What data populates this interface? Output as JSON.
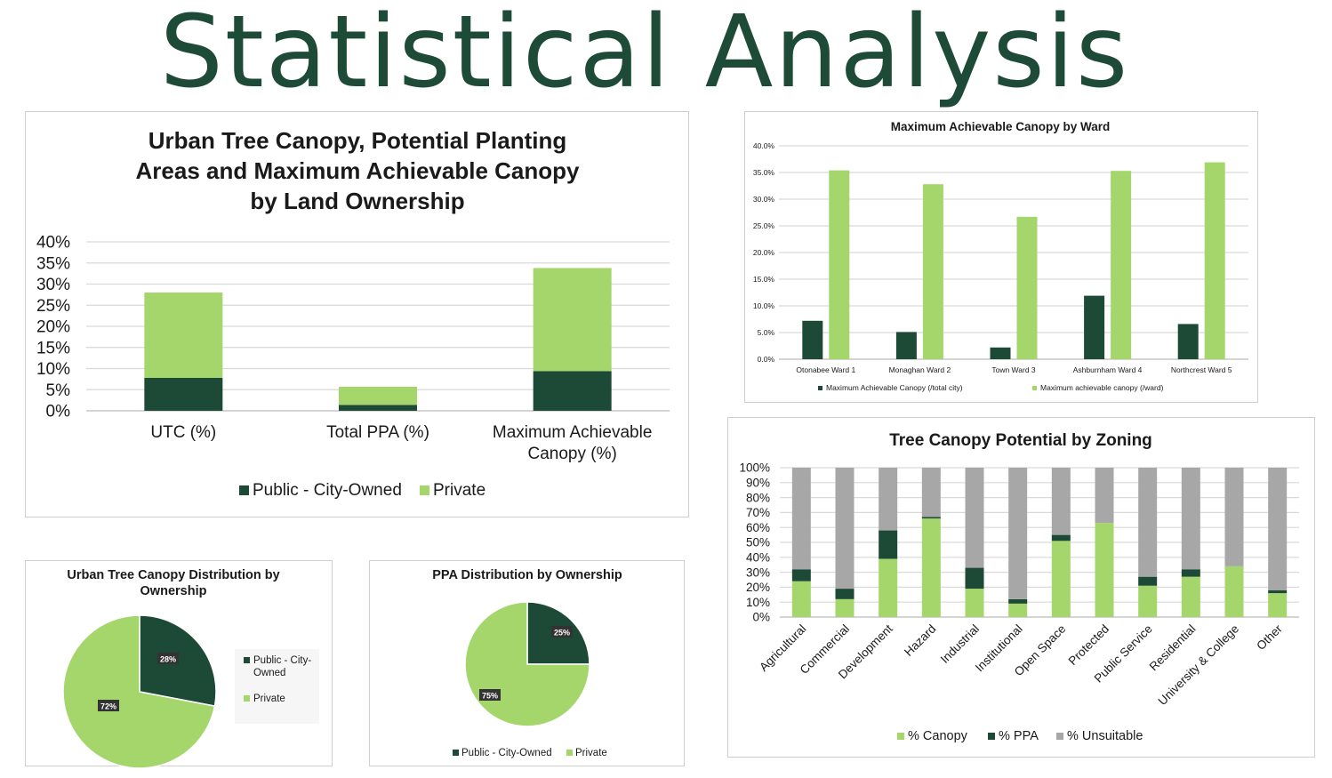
{
  "page": {
    "title": "Statistical Analysis"
  },
  "colors": {
    "dark": "#1d4a37",
    "light": "#a5d66b",
    "gray": "#a7a7a7",
    "grid": "#d9d9d9",
    "title": "#1e4a38"
  },
  "chart_data": [
    {
      "id": "ownership",
      "type": "bar",
      "stacked": true,
      "title_lines": [
        "Urban Tree Canopy, Potential Planting",
        "Areas and Maximum Achievable Canopy",
        "by Land Ownership"
      ],
      "categories": [
        [
          "UTC (%)"
        ],
        [
          "Total PPA (%)"
        ],
        [
          "Maximum Achievable",
          "Canopy (%)"
        ]
      ],
      "series": [
        {
          "name": "Public - City-Owned",
          "color": "dark",
          "values": [
            7.8,
            1.4,
            9.4
          ]
        },
        {
          "name": "Private",
          "color": "light",
          "values": [
            20.2,
            4.3,
            24.4
          ]
        }
      ],
      "ylim": [
        0,
        40
      ],
      "y_ticks": [
        "0%",
        "5%",
        "10%",
        "15%",
        "20%",
        "25%",
        "30%",
        "35%",
        "40%"
      ],
      "grid": true,
      "legend": "bottom"
    },
    {
      "id": "ward",
      "type": "bar",
      "stacked": false,
      "title_lines": [
        "Maximum Achievable Canopy by Ward"
      ],
      "categories": [
        [
          "Otonabee Ward 1"
        ],
        [
          "Monaghan Ward 2"
        ],
        [
          "Town Ward 3"
        ],
        [
          "Ashburnham Ward 4"
        ],
        [
          "Northcrest Ward 5"
        ]
      ],
      "series": [
        {
          "name": "Maximum Achievable Canopy (/total city)",
          "color": "dark",
          "values": [
            7.2,
            5.1,
            2.2,
            11.9,
            6.6
          ]
        },
        {
          "name": "Maximum achievable canopy (/ward)",
          "color": "light",
          "values": [
            35.4,
            32.8,
            26.7,
            35.3,
            36.9
          ]
        }
      ],
      "ylim": [
        0,
        40
      ],
      "y_ticks": [
        "0.0%",
        "5.0%",
        "10.0%",
        "15.0%",
        "20.0%",
        "25.0%",
        "30.0%",
        "35.0%",
        "40.0%"
      ],
      "grid": true,
      "legend": "bottom"
    },
    {
      "id": "zoning",
      "type": "bar",
      "stacked": true,
      "percent": true,
      "title_lines": [
        "Tree Canopy Potential by Zoning"
      ],
      "categories": [
        [
          "Agricultural"
        ],
        [
          "Commercial"
        ],
        [
          "Development"
        ],
        [
          "Hazard"
        ],
        [
          "Industrial"
        ],
        [
          "Institutional"
        ],
        [
          "Open Space"
        ],
        [
          "Protected"
        ],
        [
          "Public Service"
        ],
        [
          "Residential"
        ],
        [
          "University & College"
        ],
        [
          "Other"
        ]
      ],
      "series": [
        {
          "name": "% Canopy",
          "color": "light",
          "values": [
            24,
            12,
            39,
            66,
            19,
            9,
            51,
            63,
            21,
            27,
            34,
            16
          ]
        },
        {
          "name": "% PPA",
          "color": "dark",
          "values": [
            8,
            7,
            19,
            1,
            14,
            3,
            4,
            0,
            6,
            5,
            0,
            2
          ]
        },
        {
          "name": "% Unsuitable",
          "color": "gray",
          "values": [
            68,
            81,
            42,
            33,
            67,
            88,
            45,
            37,
            73,
            68,
            66,
            82
          ]
        }
      ],
      "ylim": [
        0,
        100
      ],
      "y_ticks": [
        "0%",
        "10%",
        "20%",
        "30%",
        "40%",
        "50%",
        "60%",
        "70%",
        "80%",
        "90%",
        "100%"
      ],
      "grid": true,
      "legend": "bottom"
    },
    {
      "id": "utc-pie",
      "type": "pie",
      "title_lines": [
        "Urban Tree Canopy Distribution by",
        "Ownership"
      ],
      "slices": [
        {
          "name": "Public - City-Owned",
          "legend_lines": [
            "Public - City-",
            "Owned"
          ],
          "value": 28,
          "label": "28%",
          "color": "dark"
        },
        {
          "name": "Private",
          "legend_lines": [
            "Private"
          ],
          "value": 72,
          "label": "72%",
          "color": "light"
        }
      ],
      "legend": "right"
    },
    {
      "id": "ppa-pie",
      "type": "pie",
      "title_lines": [
        "PPA Distribution by Ownership"
      ],
      "slices": [
        {
          "name": "Public - City-Owned",
          "legend_lines": [
            "Public - City-Owned"
          ],
          "value": 25,
          "label": "25%",
          "color": "dark"
        },
        {
          "name": "Private",
          "legend_lines": [
            "Private"
          ],
          "value": 75,
          "label": "75%",
          "color": "light"
        }
      ],
      "legend": "bottom"
    }
  ]
}
